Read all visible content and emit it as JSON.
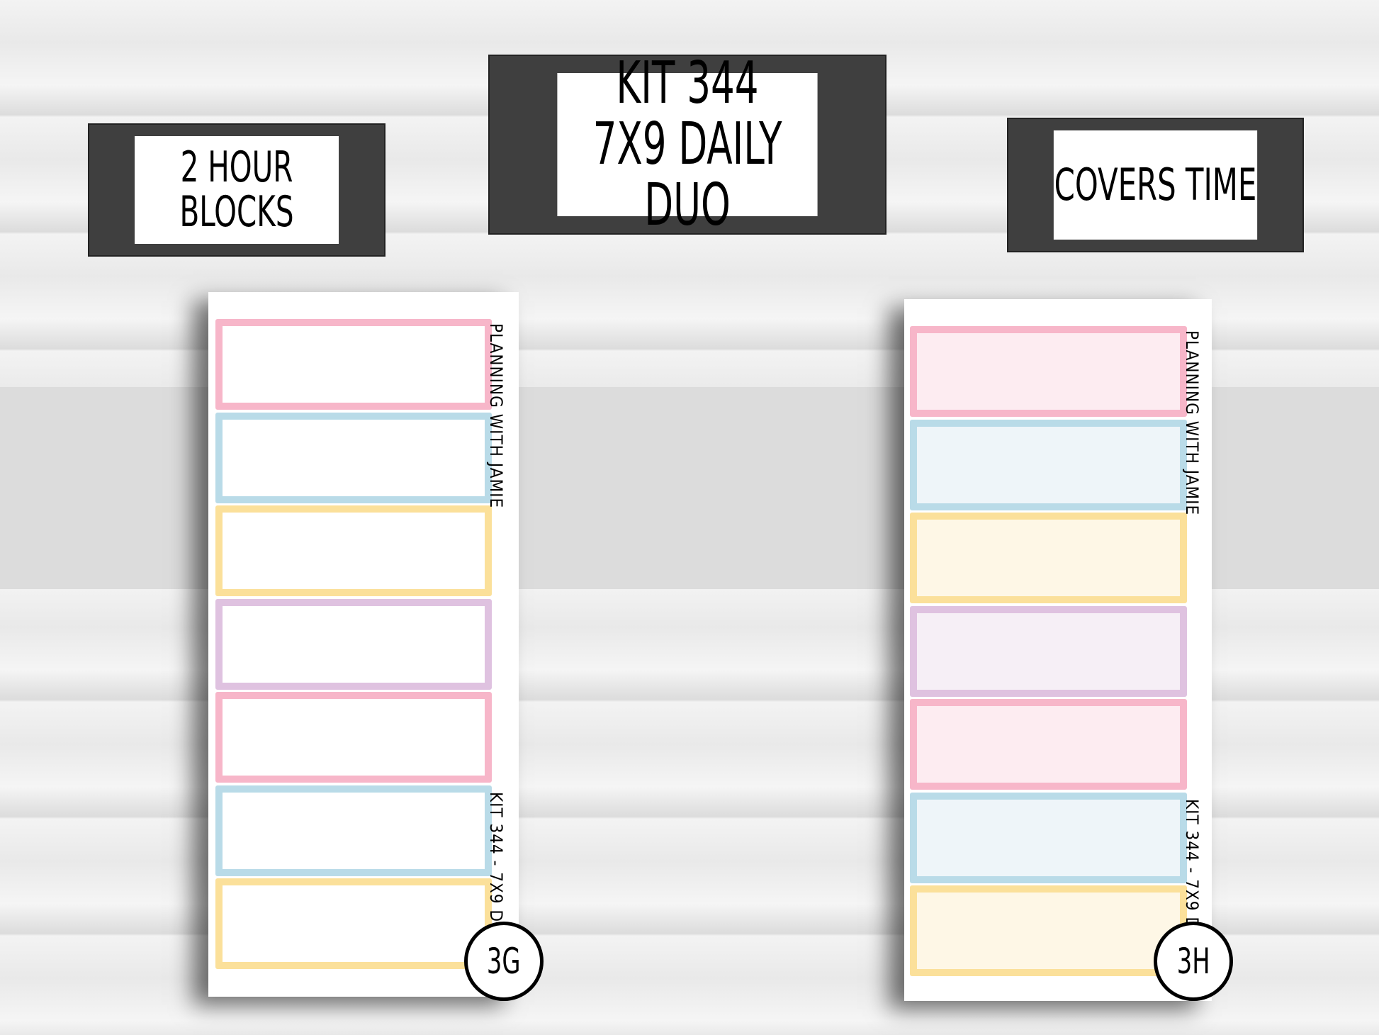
{
  "labels": {
    "left": [
      "2 HOUR",
      "BLOCKS"
    ],
    "center": [
      "KIT 344",
      "7X9 DAILY DUO"
    ],
    "right": [
      "COVERS TIME"
    ]
  },
  "sheets": [
    {
      "id": "3G",
      "brand": "PLANNING WITH JAMIE",
      "kit_text": "KIT 344 - 7X9 DD",
      "fill": "white",
      "blocks": [
        "#f7b6c9",
        "#b9dbe8",
        "#fbe09a",
        "#dfc2e0",
        "#f7b6c9",
        "#b9dbe8",
        "#fbe09a"
      ]
    },
    {
      "id": "3H",
      "brand": "PLANNING WITH JAMIE",
      "kit_text": "KIT 344 - 7X9 DD",
      "fill": "tinted",
      "blocks": [
        "#f7b6c9",
        "#b9dbe8",
        "#fbe09a",
        "#dfc2e0",
        "#f7b6c9",
        "#b9dbe8",
        "#fbe09a"
      ],
      "tints": [
        "#fdecf1",
        "#eef5f9",
        "#fef7e6",
        "#f6eff6",
        "#fdecf1",
        "#eef5f9",
        "#fef7e6"
      ]
    }
  ]
}
